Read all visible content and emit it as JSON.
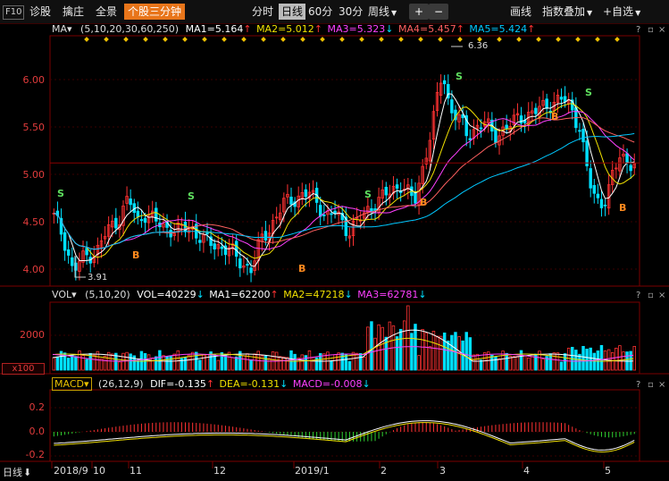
{
  "toolbar": {
    "f10": "F10",
    "diagnose": "诊股",
    "capture": "擒庄",
    "panorama": "全景",
    "stock_3min": "个股三分钟",
    "tf_intraday": "分时",
    "tf_daily": "日线",
    "tf_60": "60分",
    "tf_30": "30分",
    "tf_weekly": "周线",
    "zoom_in": "+",
    "zoom_out": "−",
    "draw": "画线",
    "overlay": "指数叠加",
    "watchlist": "+自选"
  },
  "ma": {
    "name": "MA",
    "params": "(5,10,20,30,60,250)",
    "ma1": "MA1=5.164",
    "ma2": "MA2=5.012",
    "ma3": "MA3=5.323",
    "ma4": "MA4=5.457",
    "ma5": "MA5=5.424"
  },
  "vol": {
    "name": "VOL",
    "params": "(5,10,20)",
    "vol": "VOL=40229",
    "ma1": "MA1=62200",
    "ma2": "MA2=47218",
    "ma3": "MA3=62781",
    "tick_2000": "2000",
    "unit": "x100"
  },
  "macd": {
    "name": "MACD",
    "params": "(26,12,9)",
    "dif": "DIF=-0.135",
    "dea": "DEA=-0.131",
    "macd": "MACD=-0.008",
    "tick_pos": "0.2",
    "tick_zero": "0.0",
    "tick_neg": "-0.2"
  },
  "price_axis": [
    "6.00",
    "5.50",
    "5.00",
    "4.50",
    "4.00"
  ],
  "annotations": {
    "high": "6.36",
    "low": "3.91",
    "signal_s": "S",
    "signal_b": "B"
  },
  "corner_buttons": {
    "help": "?",
    "close": "×"
  },
  "xaxis": {
    "period": "日线",
    "labels": [
      "2018/9",
      "10",
      "11",
      "12",
      "2019/1",
      "2",
      "3",
      "4",
      "5"
    ]
  },
  "colors": {
    "up": "#ff3232",
    "down": "#00e0ff",
    "ma5": "#ffffff",
    "ma10": "#f0e000",
    "ma20": "#ff40ff",
    "ma30": "#ff6060",
    "ma60": "#00c8ff",
    "signal_s": "#5fe05f",
    "signal_b": "#ff8a1e",
    "price_axis": "#e23c3c"
  }
}
